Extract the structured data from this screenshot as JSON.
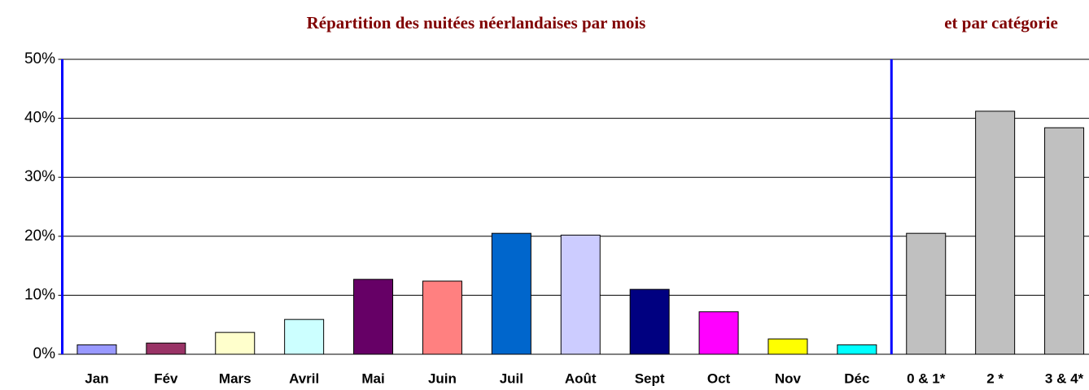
{
  "chart_data": {
    "type": "bar",
    "title": "Répartition des nuitées néerlandaises par mois",
    "title_right": "et par catégorie",
    "categories": [
      "Jan",
      "Fév",
      "Mars",
      "Avril",
      "Mai",
      "Juin",
      "Juil",
      "Août",
      "Sept",
      "Oct",
      "Nov",
      "Déc",
      "0 & 1*",
      "2 *",
      "3 & 4*"
    ],
    "values": [
      1.6,
      1.9,
      3.7,
      5.9,
      12.7,
      12.4,
      20.5,
      20.2,
      11.0,
      7.2,
      2.6,
      1.6,
      20.5,
      41.2,
      38.4
    ],
    "colors": [
      "#9999ff",
      "#993366",
      "#ffffcc",
      "#ccffff",
      "#660066",
      "#ff8080",
      "#0066cc",
      "#ccccff",
      "#000080",
      "#ff00ff",
      "#ffff00",
      "#00ffff",
      "#c0c0c0",
      "#c0c0c0",
      "#c0c0c0"
    ],
    "ylim": [
      0,
      50
    ],
    "yticks": [
      {
        "value": 0,
        "label": "0%"
      },
      {
        "value": 10,
        "label": "10%"
      },
      {
        "value": 20,
        "label": "20%"
      },
      {
        "value": 30,
        "label": "30%"
      },
      {
        "value": 40,
        "label": "40%"
      },
      {
        "value": 50,
        "label": "50%"
      }
    ],
    "grid": true
  }
}
